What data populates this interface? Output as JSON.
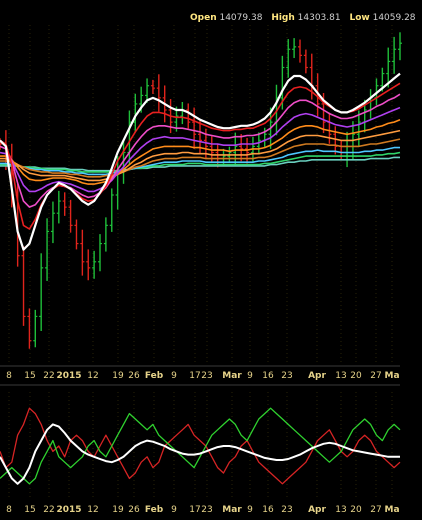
{
  "header": {
    "open_label": "Open",
    "open_value": "14079.38",
    "high_label": "High",
    "high_value": "14303.81",
    "low_label": "Low",
    "low_value": "14059.28"
  },
  "colors": {
    "background": "#000000",
    "up_bar": "#1fbf3a",
    "down_bar": "#e0241c",
    "grid": "#7a6a1a",
    "tick_label": "#e6d38a",
    "ribbon": [
      "#ffffff",
      "#e82020",
      "#ee4ec8",
      "#b040f0",
      "#ff8c1a",
      "#ff9c40",
      "#d07a20",
      "#4ec8ff",
      "#2fd66a",
      "#6ad0c0"
    ],
    "oscillator": {
      "red": "#d62424",
      "green": "#2fd12f",
      "white": "#ffffff"
    }
  },
  "chart_data": [
    {
      "type": "ohlc",
      "x_tick_labels": [
        "8",
        "15",
        "22",
        "2015",
        "12",
        "19",
        "26",
        "Feb",
        "9",
        "17",
        "23",
        "Mar",
        "9",
        "16",
        "23",
        "Apr",
        "13",
        "20",
        "27",
        "Ma"
      ],
      "header_ohlc": {
        "open": 14079.38,
        "high": 14303.81,
        "low": 14059.28
      },
      "price_series": [
        158,
        168,
        200,
        250,
        300,
        320,
        300,
        260,
        230,
        215,
        205,
        210,
        225,
        240,
        255,
        260,
        255,
        240,
        225,
        200,
        180,
        165,
        140,
        125,
        118,
        110,
        112,
        120,
        130,
        140,
        135,
        130,
        140,
        150,
        155,
        160,
        165,
        170,
        168,
        165,
        160,
        162,
        165,
        160,
        155,
        150,
        140,
        120,
        95,
        80,
        78,
        85,
        95,
        110,
        125,
        140,
        150,
        160,
        165,
        160,
        150,
        140,
        130,
        120,
        110,
        100,
        90,
        80,
        75
      ],
      "ribbon_series": [
        {
          "values": [
            155,
            160,
            195,
            230,
            245,
            240,
            225,
            210,
            200,
            195,
            190,
            192,
            195,
            200,
            205,
            208,
            205,
            198,
            190,
            178,
            165,
            155,
            145,
            135,
            128,
            122,
            120,
            122,
            125,
            128,
            130,
            130,
            132,
            135,
            138,
            140,
            142,
            144,
            145,
            145,
            144,
            143,
            143,
            142,
            140,
            137,
            132,
            124,
            114,
            106,
            102,
            102,
            105,
            110,
            116,
            122,
            126,
            130,
            132,
            132,
            130,
            127,
            124,
            120,
            116,
            112,
            108,
            104,
            100
          ]
        },
        {
          "values": [
            155,
            158,
            175,
            205,
            225,
            228,
            220,
            208,
            200,
            195,
            192,
            193,
            195,
            199,
            203,
            205,
            204,
            199,
            193,
            183,
            172,
            164,
            156,
            148,
            141,
            135,
            132,
            132,
            133,
            135,
            136,
            136,
            137,
            139,
            141,
            143,
            145,
            146,
            147,
            147,
            146,
            146,
            145,
            145,
            143,
            141,
            137,
            131,
            123,
            116,
            112,
            111,
            112,
            115,
            119,
            124,
            127,
            130,
            132,
            132,
            131,
            129,
            126,
            123,
            120,
            117,
            114,
            111,
            108
          ]
        },
        {
          "values": [
            160,
            162,
            172,
            190,
            205,
            210,
            208,
            202,
            197,
            194,
            192,
            193,
            194,
            197,
            200,
            202,
            201,
            198,
            194,
            187,
            179,
            172,
            165,
            158,
            152,
            147,
            144,
            143,
            143,
            144,
            145,
            145,
            146,
            147,
            148,
            150,
            151,
            152,
            153,
            153,
            152,
            152,
            151,
            151,
            150,
            148,
            145,
            140,
            134,
            128,
            124,
            122,
            122,
            124,
            127,
            130,
            133,
            135,
            137,
            137,
            136,
            134,
            132,
            130,
            127,
            125,
            122,
            120,
            117
          ]
        },
        {
          "values": [
            165,
            166,
            172,
            182,
            192,
            197,
            197,
            195,
            192,
            190,
            189,
            190,
            191,
            193,
            195,
            197,
            197,
            195,
            192,
            188,
            182,
            177,
            171,
            166,
            161,
            157,
            154,
            153,
            152,
            153,
            153,
            153,
            154,
            155,
            156,
            157,
            158,
            158,
            159,
            159,
            159,
            158,
            158,
            158,
            157,
            155,
            153,
            149,
            144,
            140,
            136,
            134,
            133,
            134,
            136,
            138,
            140,
            142,
            143,
            144,
            143,
            142,
            140,
            138,
            136,
            134,
            132,
            130,
            128
          ]
        },
        {
          "values": [
            168,
            168,
            171,
            177,
            183,
            187,
            188,
            188,
            187,
            186,
            186,
            186,
            187,
            188,
            190,
            191,
            191,
            190,
            189,
            186,
            183,
            179,
            175,
            171,
            168,
            165,
            162,
            161,
            160,
            160,
            160,
            160,
            160,
            161,
            161,
            162,
            163,
            163,
            163,
            164,
            163,
            163,
            163,
            162,
            162,
            161,
            159,
            156,
            153,
            149,
            146,
            144,
            143,
            143,
            144,
            146,
            147,
            148,
            149,
            150,
            149,
            148,
            147,
            146,
            144,
            143,
            141,
            140,
            138
          ]
        },
        {
          "values": [
            170,
            170,
            172,
            175,
            179,
            182,
            183,
            184,
            184,
            184,
            184,
            184,
            185,
            186,
            187,
            188,
            188,
            188,
            187,
            185,
            183,
            181,
            178,
            175,
            173,
            170,
            168,
            167,
            166,
            166,
            166,
            165,
            165,
            166,
            166,
            166,
            167,
            167,
            167,
            167,
            167,
            167,
            167,
            166,
            166,
            165,
            164,
            162,
            159,
            156,
            154,
            152,
            151,
            151,
            151,
            152,
            153,
            154,
            155,
            155,
            155,
            154,
            153,
            152,
            151,
            150,
            149,
            148,
            147
          ]
        },
        {
          "values": [
            172,
            172,
            173,
            175,
            177,
            179,
            180,
            181,
            181,
            182,
            182,
            182,
            183,
            183,
            184,
            185,
            185,
            185,
            184,
            184,
            182,
            181,
            179,
            177,
            176,
            174,
            172,
            171,
            170,
            170,
            170,
            169,
            169,
            169,
            169,
            170,
            170,
            170,
            170,
            170,
            170,
            170,
            170,
            170,
            169,
            169,
            168,
            166,
            164,
            162,
            160,
            159,
            158,
            158,
            158,
            158,
            159,
            159,
            160,
            160,
            160,
            160,
            159,
            158,
            158,
            157,
            156,
            155,
            154
          ]
        },
        {
          "values": [
            174,
            174,
            175,
            176,
            177,
            178,
            179,
            179,
            180,
            180,
            180,
            181,
            181,
            182,
            182,
            183,
            183,
            183,
            183,
            182,
            181,
            180,
            179,
            178,
            177,
            176,
            175,
            174,
            173,
            173,
            173,
            172,
            172,
            172,
            172,
            173,
            173,
            173,
            173,
            173,
            173,
            173,
            173,
            173,
            172,
            172,
            171,
            170,
            169,
            167,
            166,
            165,
            164,
            164,
            163,
            164,
            164,
            164,
            165,
            165,
            165,
            165,
            164,
            164,
            163,
            163,
            162,
            161,
            161
          ]
        },
        {
          "values": [
            175,
            175,
            175,
            176,
            177,
            177,
            178,
            178,
            179,
            179,
            179,
            179,
            180,
            180,
            181,
            181,
            181,
            181,
            181,
            181,
            180,
            180,
            179,
            178,
            178,
            177,
            176,
            176,
            175,
            175,
            175,
            175,
            174,
            174,
            174,
            175,
            175,
            175,
            175,
            175,
            175,
            175,
            175,
            175,
            175,
            174,
            174,
            173,
            172,
            171,
            170,
            169,
            168,
            168,
            168,
            168,
            168,
            168,
            168,
            168,
            168,
            168,
            168,
            168,
            167,
            167,
            166,
            166,
            165
          ]
        },
        {
          "values": [
            176,
            176,
            176,
            176,
            177,
            177,
            177,
            178,
            178,
            178,
            178,
            178,
            179,
            179,
            179,
            180,
            180,
            180,
            180,
            180,
            180,
            179,
            179,
            178,
            178,
            178,
            177,
            177,
            177,
            176,
            176,
            176,
            176,
            176,
            176,
            176,
            176,
            176,
            176,
            176,
            176,
            176,
            176,
            176,
            176,
            176,
            175,
            175,
            174,
            173,
            173,
            172,
            172,
            171,
            171,
            171,
            171,
            171,
            171,
            171,
            171,
            171,
            171,
            170,
            170,
            170,
            170,
            169,
            169
          ]
        }
      ]
    },
    {
      "type": "line",
      "series": [
        {
          "color": "red",
          "values": [
            45,
            30,
            35,
            60,
            70,
            85,
            80,
            70,
            55,
            45,
            50,
            40,
            55,
            60,
            55,
            45,
            40,
            50,
            60,
            50,
            40,
            30,
            20,
            25,
            35,
            40,
            30,
            35,
            50,
            55,
            60,
            65,
            70,
            60,
            55,
            50,
            40,
            30,
            25,
            35,
            40,
            50,
            55,
            45,
            35,
            30,
            25,
            20,
            15,
            20,
            25,
            30,
            35,
            45,
            55,
            60,
            65,
            55,
            45,
            40,
            45,
            55,
            60,
            55,
            45,
            40,
            35,
            30,
            35
          ]
        },
        {
          "color": "green",
          "values": [
            20,
            25,
            30,
            25,
            20,
            15,
            20,
            35,
            45,
            55,
            40,
            35,
            30,
            35,
            40,
            50,
            55,
            45,
            40,
            50,
            60,
            70,
            80,
            75,
            70,
            65,
            70,
            60,
            55,
            50,
            45,
            40,
            35,
            30,
            40,
            50,
            60,
            65,
            70,
            75,
            70,
            60,
            55,
            65,
            75,
            80,
            85,
            80,
            75,
            70,
            65,
            60,
            55,
            50,
            45,
            40,
            35,
            40,
            45,
            55,
            65,
            70,
            75,
            70,
            60,
            55,
            65,
            70,
            65
          ]
        },
        {
          "color": "white",
          "values": [
            40,
            30,
            20,
            15,
            20,
            30,
            45,
            55,
            65,
            70,
            68,
            62,
            55,
            50,
            45,
            42,
            40,
            38,
            36,
            35,
            37,
            40,
            45,
            50,
            53,
            55,
            54,
            52,
            50,
            47,
            45,
            43,
            42,
            42,
            43,
            45,
            47,
            49,
            50,
            50,
            49,
            47,
            45,
            43,
            41,
            39,
            38,
            37,
            37,
            38,
            40,
            42,
            45,
            48,
            50,
            52,
            53,
            52,
            50,
            48,
            46,
            45,
            44,
            43,
            42,
            41,
            40,
            40,
            40
          ]
        }
      ]
    }
  ]
}
